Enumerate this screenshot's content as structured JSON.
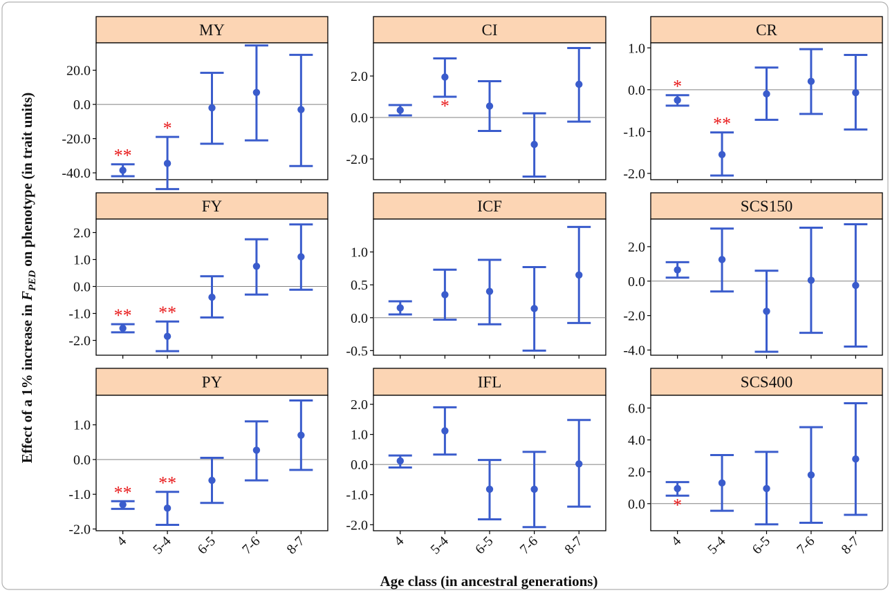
{
  "figure": {
    "ylabel_prefix": "Effect of a 1% increase in ",
    "ylabel_var": "F",
    "ylabel_sub": "PED",
    "ylabel_suffix": " on phenotype (in trait units)",
    "xlabel": "Age class (in ancestral generations)"
  },
  "colors": {
    "series": "#3a5ccc",
    "significance": "#e8191a",
    "strip_fill": "#fcd5b4",
    "zero_line": "#808080"
  },
  "chart_data": [
    {
      "type": "errorbar",
      "title": "MY",
      "categories": [
        "4",
        "5-4",
        "6-5",
        "7-6",
        "8-7"
      ],
      "ylim": [
        -44,
        36
      ],
      "yticks": [
        -40,
        -20,
        0,
        20
      ],
      "ytick_labels": [
        "-40.0",
        "-20.0",
        "0.0",
        "20.0"
      ],
      "estimate": [
        -38.5,
        -34.5,
        -2,
        7,
        -3
      ],
      "lower": [
        -42,
        -49.5,
        -23,
        -21,
        -36
      ],
      "upper": [
        -35,
        -19,
        18.5,
        34.5,
        29
      ],
      "significance": [
        "**",
        "*",
        "",
        "",
        ""
      ],
      "significance_position": [
        "above",
        "above",
        "",
        "",
        ""
      ]
    },
    {
      "type": "errorbar",
      "title": "CI",
      "categories": [
        "4",
        "5-4",
        "6-5",
        "7-6",
        "8-7"
      ],
      "ylim": [
        -3.0,
        3.6
      ],
      "yticks": [
        -2,
        0,
        2
      ],
      "ytick_labels": [
        "-2.0",
        "0.0",
        "2.0"
      ],
      "estimate": [
        0.35,
        1.95,
        0.55,
        -1.3,
        1.6
      ],
      "lower": [
        0.1,
        1.0,
        -0.65,
        -2.85,
        -0.2
      ],
      "upper": [
        0.6,
        2.85,
        1.75,
        0.2,
        3.35
      ],
      "significance": [
        "",
        "*",
        "",
        "",
        ""
      ],
      "significance_position": [
        "",
        "below",
        "",
        "",
        ""
      ]
    },
    {
      "type": "errorbar",
      "title": "CR",
      "categories": [
        "4",
        "5-4",
        "6-5",
        "7-6",
        "8-7"
      ],
      "ylim": [
        -2.15,
        1.12
      ],
      "yticks": [
        -2,
        -1,
        0,
        1
      ],
      "ytick_labels": [
        "-2.0",
        "-1.0",
        "0.0",
        "1.0"
      ],
      "estimate": [
        -0.25,
        -1.55,
        -0.1,
        0.2,
        -0.07
      ],
      "lower": [
        -0.38,
        -2.05,
        -0.72,
        -0.58,
        -0.95
      ],
      "upper": [
        -0.13,
        -1.02,
        0.53,
        0.97,
        0.83
      ],
      "significance": [
        "*",
        "**",
        "",
        "",
        ""
      ],
      "significance_position": [
        "above",
        "above",
        "",
        "",
        ""
      ]
    },
    {
      "type": "errorbar",
      "title": "FY",
      "categories": [
        "4",
        "5-4",
        "6-5",
        "7-6",
        "8-7"
      ],
      "ylim": [
        -2.55,
        2.5
      ],
      "yticks": [
        -2,
        -1,
        0,
        1,
        2
      ],
      "ytick_labels": [
        "-2.0",
        "-1.0",
        "0.0",
        "1.0",
        "2.0"
      ],
      "estimate": [
        -1.55,
        -1.85,
        -0.4,
        0.75,
        1.1
      ],
      "lower": [
        -1.7,
        -2.4,
        -1.15,
        -0.3,
        -0.12
      ],
      "upper": [
        -1.4,
        -1.3,
        0.38,
        1.75,
        2.3
      ],
      "significance": [
        "**",
        "**",
        "",
        "",
        ""
      ],
      "significance_position": [
        "above",
        "above",
        "",
        "",
        ""
      ]
    },
    {
      "type": "errorbar",
      "title": "ICF",
      "categories": [
        "4",
        "5-4",
        "6-5",
        "7-6",
        "8-7"
      ],
      "ylim": [
        -0.57,
        1.5
      ],
      "yticks": [
        -0.5,
        0,
        0.5,
        1
      ],
      "ytick_labels": [
        "-0.5",
        "0.0",
        "0.5",
        "1.0"
      ],
      "estimate": [
        0.15,
        0.35,
        0.4,
        0.14,
        0.65
      ],
      "lower": [
        0.05,
        -0.03,
        -0.1,
        -0.5,
        -0.08
      ],
      "upper": [
        0.25,
        0.73,
        0.88,
        0.77,
        1.38
      ],
      "significance": [
        "",
        "",
        "",
        "",
        ""
      ],
      "significance_position": [
        "",
        "",
        "",
        "",
        ""
      ]
    },
    {
      "type": "errorbar",
      "title": "SCS150",
      "categories": [
        "4",
        "5-4",
        "6-5",
        "7-6",
        "8-7"
      ],
      "ylim": [
        -4.3,
        3.6
      ],
      "yticks": [
        -4,
        -2,
        0,
        2
      ],
      "ytick_labels": [
        "-4.0",
        "-2.0",
        "0.0",
        "2.0"
      ],
      "estimate": [
        0.65,
        1.25,
        -1.75,
        0.05,
        -0.25
      ],
      "lower": [
        0.2,
        -0.6,
        -4.1,
        -3.0,
        -3.8
      ],
      "upper": [
        1.1,
        3.05,
        0.6,
        3.1,
        3.3
      ],
      "significance": [
        "",
        "",
        "",
        "",
        ""
      ],
      "significance_position": [
        "",
        "",
        "",
        "",
        ""
      ]
    },
    {
      "type": "errorbar",
      "title": "PY",
      "categories": [
        "4",
        "5-4",
        "6-5",
        "7-6",
        "8-7"
      ],
      "ylim": [
        -2.05,
        1.85
      ],
      "yticks": [
        -2,
        -1,
        0,
        1
      ],
      "ytick_labels": [
        "-2.0",
        "-1.0",
        "0.0",
        "1.0"
      ],
      "estimate": [
        -1.3,
        -1.4,
        -0.6,
        0.27,
        0.7
      ],
      "lower": [
        -1.42,
        -1.88,
        -1.25,
        -0.6,
        -0.3
      ],
      "upper": [
        -1.2,
        -0.93,
        0.05,
        1.1,
        1.7
      ],
      "significance": [
        "**",
        "**",
        "",
        "",
        ""
      ],
      "significance_position": [
        "above",
        "above",
        "",
        "",
        ""
      ]
    },
    {
      "type": "errorbar",
      "title": "IFL",
      "categories": [
        "4",
        "5-4",
        "6-5",
        "7-6",
        "8-7"
      ],
      "ylim": [
        -2.2,
        2.3
      ],
      "yticks": [
        -2,
        -1,
        0,
        1,
        2
      ],
      "ytick_labels": [
        "-2.0",
        "-1.0",
        "0.0",
        "1.0",
        "2.0"
      ],
      "estimate": [
        0.12,
        1.12,
        -0.82,
        -0.82,
        0.02
      ],
      "lower": [
        -0.1,
        0.33,
        -1.82,
        -2.08,
        -1.4
      ],
      "upper": [
        0.3,
        1.9,
        0.15,
        0.42,
        1.48
      ],
      "significance": [
        "",
        "",
        "",
        "",
        ""
      ],
      "significance_position": [
        "",
        "",
        "",
        "",
        ""
      ]
    },
    {
      "type": "errorbar",
      "title": "SCS400",
      "categories": [
        "4",
        "5-4",
        "6-5",
        "7-6",
        "8-7"
      ],
      "ylim": [
        -1.7,
        6.8
      ],
      "yticks": [
        0,
        2,
        4,
        6
      ],
      "ytick_labels": [
        "0.0",
        "2.0",
        "4.0",
        "6.0"
      ],
      "estimate": [
        0.95,
        1.3,
        0.95,
        1.8,
        2.8
      ],
      "lower": [
        0.5,
        -0.45,
        -1.3,
        -1.2,
        -0.7
      ],
      "upper": [
        1.35,
        3.05,
        3.25,
        4.8,
        6.3
      ],
      "significance": [
        "*",
        "",
        "",
        "",
        ""
      ],
      "significance_position": [
        "below",
        "",
        "",
        "",
        ""
      ]
    }
  ]
}
